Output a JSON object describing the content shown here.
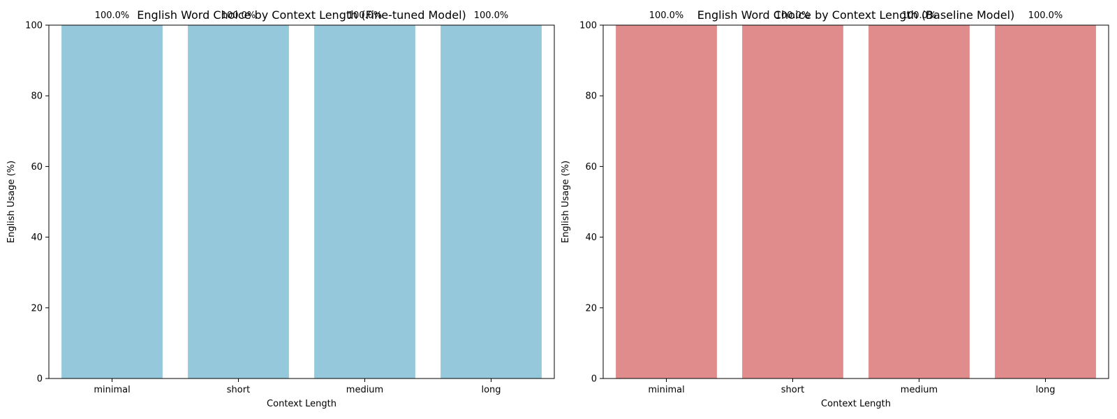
{
  "chart_data": [
    {
      "type": "bar",
      "title": "English Word Choice by Context Length (Fine-tuned Model)",
      "xlabel": "Context Length",
      "ylabel": "English Usage (%)",
      "categories": [
        "minimal",
        "short",
        "medium",
        "long"
      ],
      "values": [
        100,
        100,
        100,
        100
      ],
      "value_labels": [
        "100.0%",
        "100.0%",
        "100.0%",
        "100.0%"
      ],
      "ylim": [
        0,
        100
      ],
      "yticks": [
        0,
        20,
        40,
        60,
        80,
        100
      ],
      "color": "#96c8dc",
      "grid": false
    },
    {
      "type": "bar",
      "title": "English Word Choice by Context Length (Baseline Model)",
      "xlabel": "Context Length",
      "ylabel": "English Usage (%)",
      "categories": [
        "minimal",
        "short",
        "medium",
        "long"
      ],
      "values": [
        100,
        100,
        100,
        100
      ],
      "value_labels": [
        "100.0%",
        "100.0%",
        "100.0%",
        "100.0%"
      ],
      "ylim": [
        0,
        100
      ],
      "yticks": [
        0,
        20,
        40,
        60,
        80,
        100
      ],
      "color": "#e08c8c",
      "grid": false
    }
  ]
}
